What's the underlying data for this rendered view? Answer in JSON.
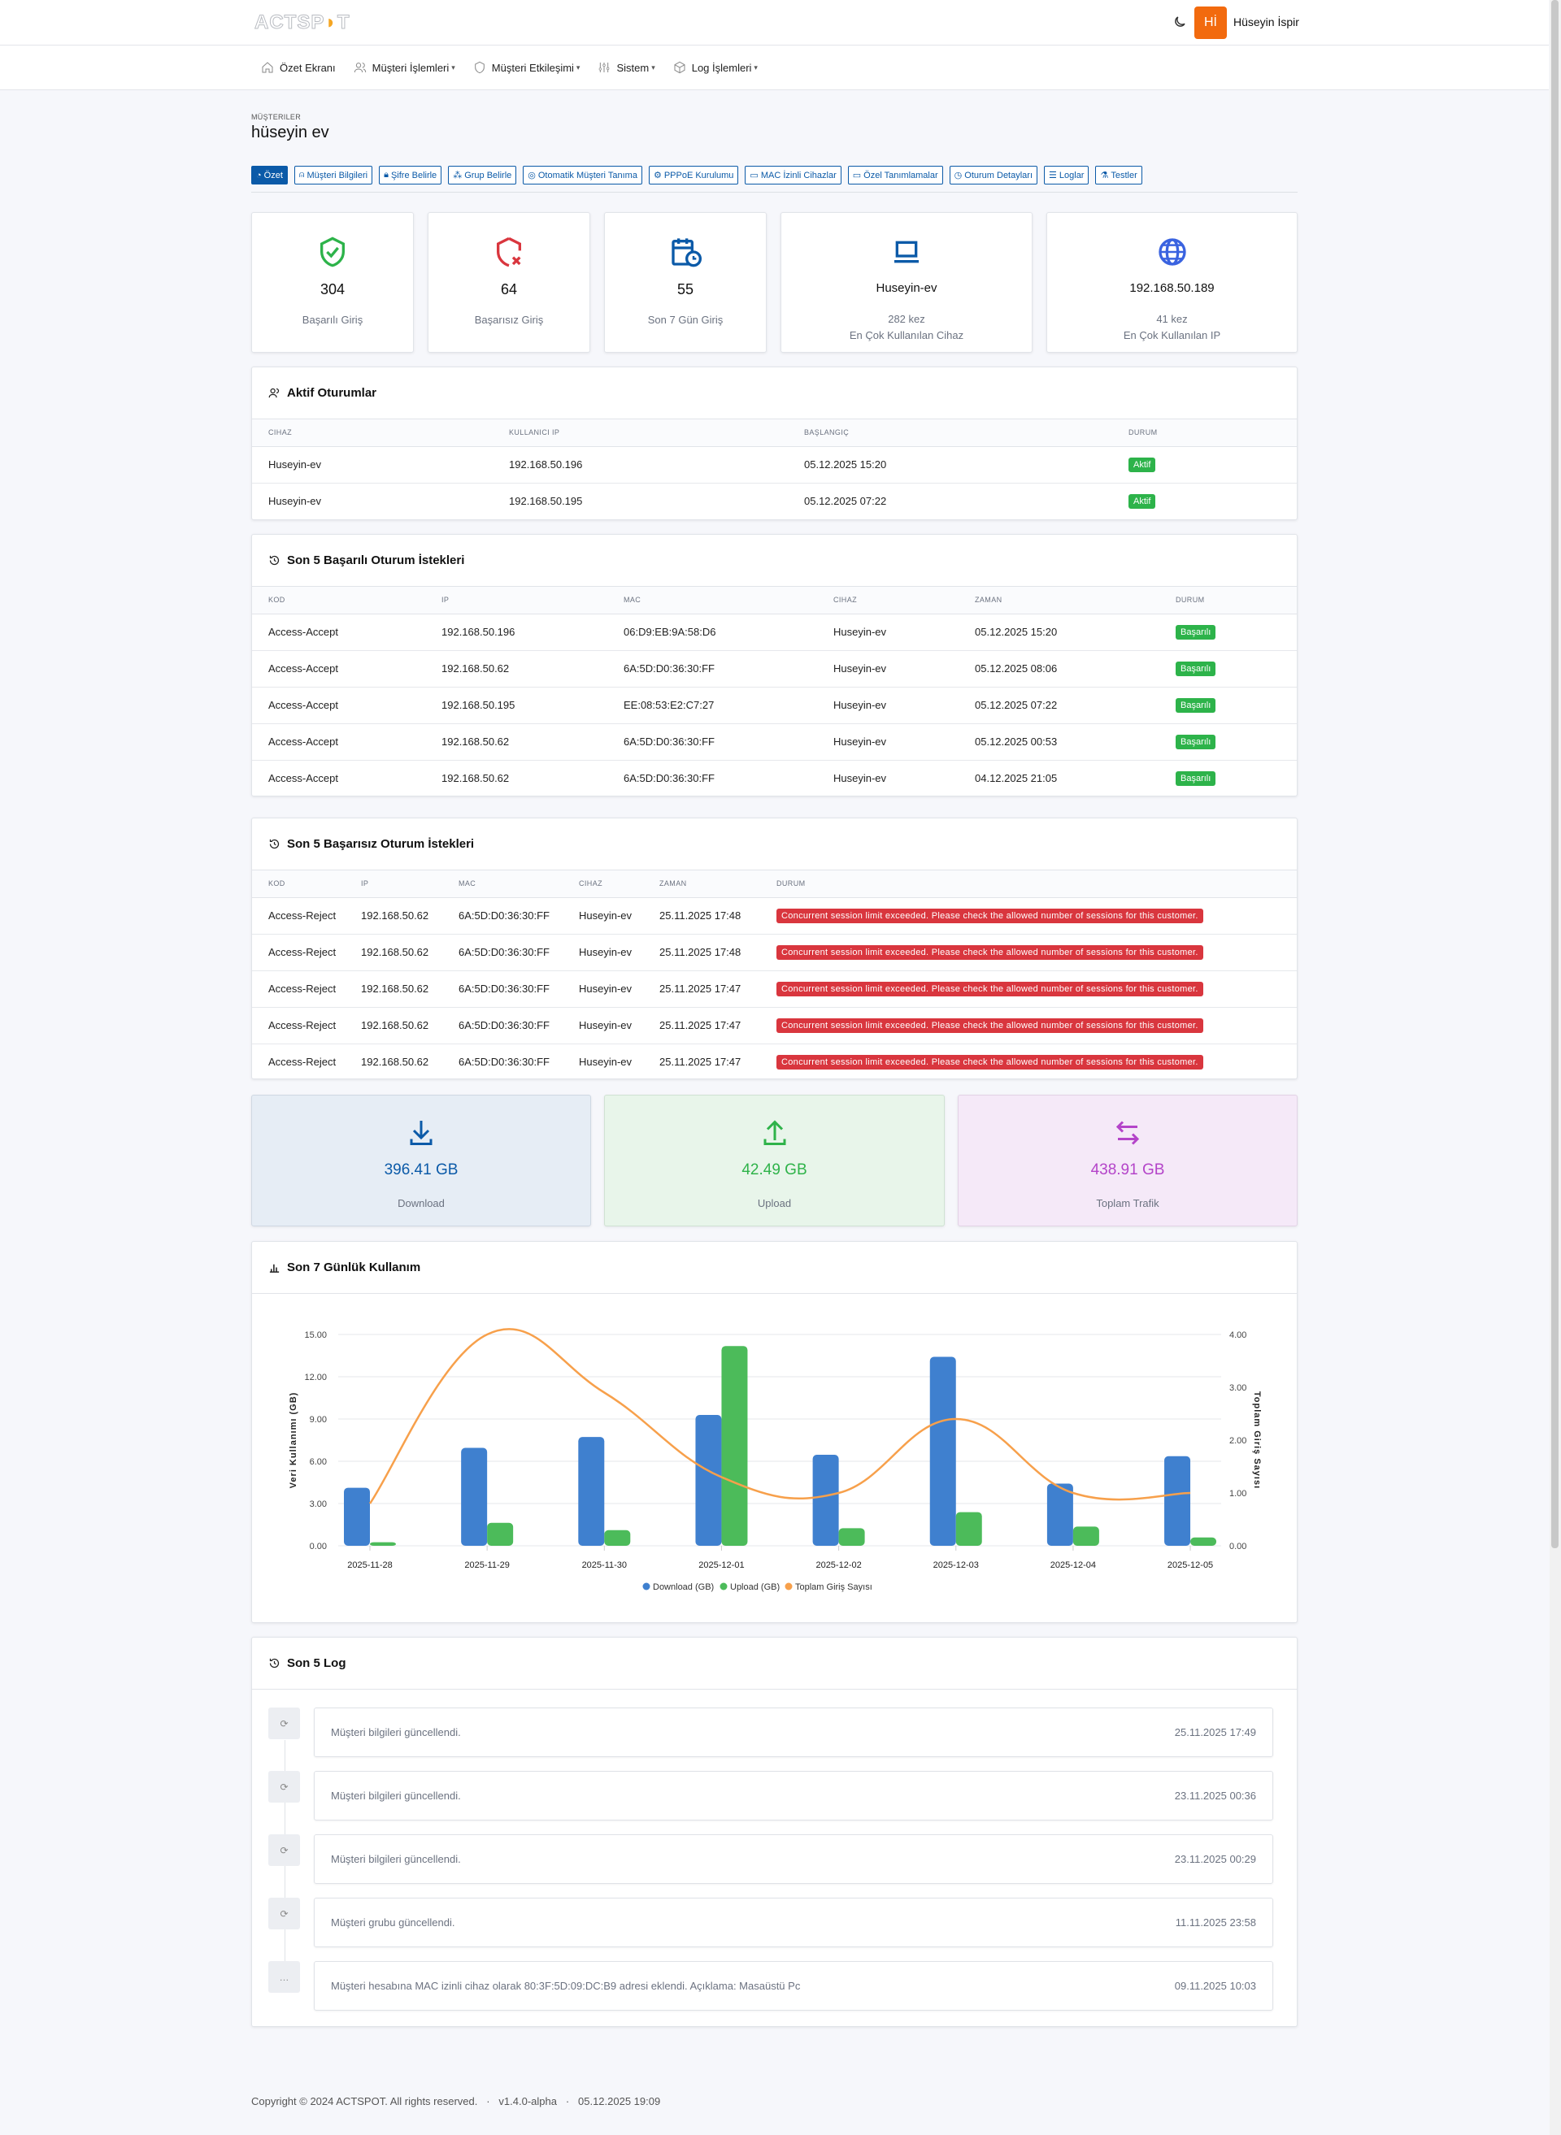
{
  "header": {
    "logo_text": "ACTSPOT",
    "user_initials": "Hİ",
    "user_name": "Hüseyin İspir"
  },
  "nav": [
    {
      "label": "Özet Ekranı",
      "icon": "home-icon"
    },
    {
      "label": "Müşteri İşlemleri",
      "icon": "users-icon",
      "dropdown": true
    },
    {
      "label": "Müşteri Etkileşimi",
      "icon": "shield-icon",
      "dropdown": true
    },
    {
      "label": "Sistem",
      "icon": "sliders-icon",
      "dropdown": true
    },
    {
      "label": "Log İşlemleri",
      "icon": "box-icon",
      "dropdown": true
    }
  ],
  "page": {
    "breadcrumb": "MÜŞTERILER",
    "title": "hüseyin ev"
  },
  "tabs": [
    "Özet",
    "Müşteri Bilgileri",
    "Şifre Belirle",
    "Grup Belirle",
    "Otomatik Müşteri Tanıma",
    "PPPoE Kurulumu",
    "MAC İzinli Cihazlar",
    "Özel Tanımlamalar",
    "Oturum Detayları",
    "Loglar",
    "Testler"
  ],
  "stats": {
    "success": {
      "value": "304",
      "label": "Başarılı Giriş",
      "color": "#2db34a"
    },
    "fail": {
      "value": "64",
      "label": "Başarısız Giriş",
      "color": "#d9363e"
    },
    "last7": {
      "value": "55",
      "label": "Son 7 Gün Giriş",
      "color": "#0b5aa8"
    },
    "device": {
      "value": "Huseyin-ev",
      "count": "282 kez",
      "label": "En Çok Kullanılan Cihaz"
    },
    "ip": {
      "value": "192.168.50.189",
      "count": "41 kez",
      "label": "En Çok Kullanılan IP"
    }
  },
  "active_sessions": {
    "title": "Aktif Oturumlar",
    "columns": [
      "CIHAZ",
      "KULLANICI IP",
      "BAŞLANGIÇ",
      "DURUM"
    ],
    "rows": [
      [
        "Huseyin-ev",
        "192.168.50.196",
        "05.12.2025 15:20",
        "Aktif"
      ],
      [
        "Huseyin-ev",
        "192.168.50.195",
        "05.12.2025 07:22",
        "Aktif"
      ]
    ]
  },
  "success_requests": {
    "title": "Son 5 Başarılı Oturum İstekleri",
    "columns": [
      "KOD",
      "IP",
      "MAC",
      "CIHAZ",
      "ZAMAN",
      "DURUM"
    ],
    "rows": [
      [
        "Access-Accept",
        "192.168.50.196",
        "06:D9:EB:9A:58:D6",
        "Huseyin-ev",
        "05.12.2025 15:20",
        "Başarılı"
      ],
      [
        "Access-Accept",
        "192.168.50.62",
        "6A:5D:D0:36:30:FF",
        "Huseyin-ev",
        "05.12.2025 08:06",
        "Başarılı"
      ],
      [
        "Access-Accept",
        "192.168.50.195",
        "EE:08:53:E2:C7:27",
        "Huseyin-ev",
        "05.12.2025 07:22",
        "Başarılı"
      ],
      [
        "Access-Accept",
        "192.168.50.62",
        "6A:5D:D0:36:30:FF",
        "Huseyin-ev",
        "05.12.2025 00:53",
        "Başarılı"
      ],
      [
        "Access-Accept",
        "192.168.50.62",
        "6A:5D:D0:36:30:FF",
        "Huseyin-ev",
        "04.12.2025 21:05",
        "Başarılı"
      ]
    ]
  },
  "failed_requests": {
    "title": "Son 5 Başarısız Oturum İstekleri",
    "columns": [
      "KOD",
      "IP",
      "MAC",
      "CIHAZ",
      "ZAMAN",
      "DURUM"
    ],
    "rows": [
      [
        "Access-Reject",
        "192.168.50.62",
        "6A:5D:D0:36:30:FF",
        "Huseyin-ev",
        "25.11.2025 17:48",
        "Concurrent session limit exceeded. Please check the allowed number of sessions for this customer."
      ],
      [
        "Access-Reject",
        "192.168.50.62",
        "6A:5D:D0:36:30:FF",
        "Huseyin-ev",
        "25.11.2025 17:48",
        "Concurrent session limit exceeded. Please check the allowed number of sessions for this customer."
      ],
      [
        "Access-Reject",
        "192.168.50.62",
        "6A:5D:D0:36:30:FF",
        "Huseyin-ev",
        "25.11.2025 17:47",
        "Concurrent session limit exceeded. Please check the allowed number of sessions for this customer."
      ],
      [
        "Access-Reject",
        "192.168.50.62",
        "6A:5D:D0:36:30:FF",
        "Huseyin-ev",
        "25.11.2025 17:47",
        "Concurrent session limit exceeded. Please check the allowed number of sessions for this customer."
      ],
      [
        "Access-Reject",
        "192.168.50.62",
        "6A:5D:D0:36:30:FF",
        "Huseyin-ev",
        "25.11.2025 17:47",
        "Concurrent session limit exceeded. Please check the allowed number of sessions for this customer."
      ]
    ]
  },
  "traffic": {
    "download": {
      "value": "396.41 GB",
      "label": "Download",
      "color": "#0b5aa8"
    },
    "upload": {
      "value": "42.49 GB",
      "label": "Upload",
      "color": "#2fb34a"
    },
    "total": {
      "value": "438.91 GB",
      "label": "Toplam Trafik",
      "color": "#b444c9"
    }
  },
  "usage_title": "Son 7 Günlük Kullanım",
  "chart_data": {
    "type": "bar",
    "categories": [
      "2025-11-28",
      "2025-11-29",
      "2025-11-30",
      "2025-12-01",
      "2025-12-02",
      "2025-12-03",
      "2025-12-04",
      "2025-12-05"
    ],
    "series": [
      {
        "name": "Download (GB)",
        "type": "bar",
        "axis": "left",
        "color": "#3f80cf",
        "values": [
          4.12,
          6.95,
          7.72,
          9.29,
          6.46,
          13.41,
          4.41,
          6.36
        ]
      },
      {
        "name": "Upload (GB)",
        "type": "bar",
        "axis": "left",
        "color": "#4cbb5a",
        "values": [
          0.25,
          1.63,
          1.11,
          14.18,
          1.25,
          2.39,
          1.36,
          0.59
        ]
      },
      {
        "name": "Toplam Giriş Sayısı",
        "type": "line",
        "axis": "right",
        "color": "#f7a04b",
        "values": [
          0.8,
          4,
          2.9,
          1.3,
          1,
          2.4,
          1,
          1
        ]
      }
    ],
    "ylabel": "Veri Kullanımı (GB)",
    "y2label": "Toplam Giriş Sayısı",
    "ylim": [
      0,
      15
    ],
    "y2lim": [
      0,
      4
    ],
    "yticks": [
      "0.00",
      "3.00",
      "6.00",
      "9.00",
      "12.00",
      "15.00"
    ],
    "y2ticks": [
      "0.00",
      "1.00",
      "2.00",
      "3.00",
      "4.00"
    ],
    "grid": true,
    "legend": "bottom"
  },
  "logs": {
    "title": "Son 5 Log",
    "items": [
      {
        "text": "Müşteri bilgileri güncellendi.",
        "time": "25.11.2025 17:49",
        "icon": "refresh-icon"
      },
      {
        "text": "Müşteri bilgileri güncellendi.",
        "time": "23.11.2025 00:36",
        "icon": "refresh-icon"
      },
      {
        "text": "Müşteri bilgileri güncellendi.",
        "time": "23.11.2025 00:29",
        "icon": "refresh-icon"
      },
      {
        "text": "Müşteri grubu güncellendi.",
        "time": "11.11.2025 23:58",
        "icon": "refresh-icon"
      },
      {
        "text": "Müşteri hesabına MAC izinli cihaz olarak 80:3F:5D:09:DC:B9 adresi eklendi. Açıklama: Masaüstü Pc",
        "time": "09.11.2025 10:03",
        "icon": "ellipsis-icon"
      }
    ]
  },
  "footer": {
    "copyright": "Copyright © 2024 ACTSPOT. All rights reserved.",
    "sep": "·",
    "version": "v1.4.0-alpha",
    "timestamp": "05.12.2025 19:09"
  }
}
